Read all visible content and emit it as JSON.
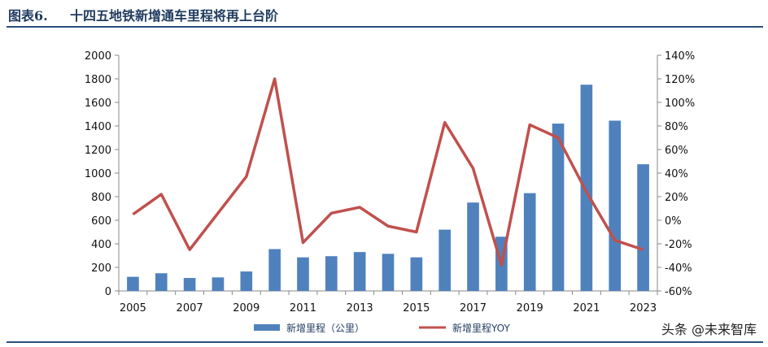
{
  "header": {
    "figure_label": "图表6.",
    "title": "十四五地铁新增通车里程将再上台阶"
  },
  "watermark": "头条 @未来智库",
  "chart_data": {
    "type": "bar+line",
    "categories": [
      "2005",
      "2006",
      "2007",
      "2008",
      "2009",
      "2010",
      "2011",
      "2012",
      "2013",
      "2014",
      "2015",
      "2016",
      "2017",
      "2018",
      "2019",
      "2020",
      "2021",
      "2022",
      "2023"
    ],
    "x_tick_labels": [
      "2005",
      "2007",
      "2009",
      "2011",
      "2013",
      "2015",
      "2017",
      "2019",
      "2021",
      "2023"
    ],
    "series": [
      {
        "name": "新增里程（公里）",
        "type": "bar",
        "axis": "left",
        "color": "#4f81bd",
        "values": [
          120,
          150,
          110,
          115,
          165,
          355,
          285,
          295,
          330,
          315,
          285,
          520,
          750,
          460,
          830,
          1420,
          1750,
          1445,
          1075
        ]
      },
      {
        "name": "新增里程YOY",
        "type": "line",
        "axis": "right",
        "color": "#c0504d",
        "values": [
          5,
          22,
          -25,
          6,
          37,
          120,
          -19,
          6,
          11,
          -5,
          -10,
          83,
          44,
          -38,
          81,
          70,
          24,
          -17,
          -25
        ]
      }
    ],
    "y_left": {
      "min": 0,
      "max": 2000,
      "ticks": [
        "0",
        "200",
        "400",
        "600",
        "800",
        "1000",
        "1200",
        "1400",
        "1600",
        "1800",
        "2000"
      ]
    },
    "y_right": {
      "min": -60,
      "max": 140,
      "ticks": [
        "-60%",
        "-40%",
        "-20%",
        "0%",
        "20%",
        "40%",
        "60%",
        "80%",
        "100%",
        "120%",
        "140%"
      ]
    },
    "legend_position": "bottom",
    "grid": false
  }
}
